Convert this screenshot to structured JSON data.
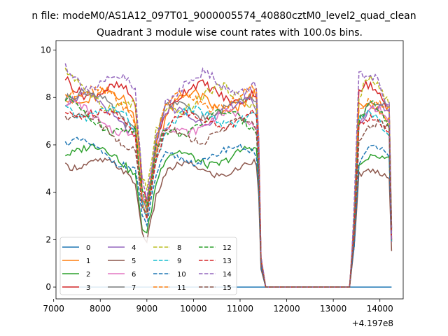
{
  "chart_data": {
    "type": "line",
    "suptitle": "n file: modeM0/AS1A12_097T01_9000005574_40880cztM0_level2_quad_clean",
    "title": "Quadrant 3 module wise count rates with 100.0s bins.",
    "xlabel": "",
    "ylabel": "",
    "x_offset_label": "+4.197e8",
    "xlim": [
      7050,
      14500
    ],
    "ylim": [
      -0.5,
      10.4
    ],
    "xticks": [
      7000,
      8000,
      9000,
      10000,
      11000,
      12000,
      13000,
      14000
    ],
    "yticks": [
      0,
      2,
      4,
      6,
      8,
      10
    ],
    "grid": false,
    "legend_position": "lower-left",
    "legend_columns": 4,
    "series": [
      {
        "name": "0",
        "color": "#1f77b4",
        "dash": "solid",
        "base": 0.0,
        "amp": 0.0,
        "phase": 0.0
      },
      {
        "name": "1",
        "color": "#ff7f0e",
        "dash": "solid",
        "base": 7.8,
        "amp": 0.5,
        "phase": 1.1
      },
      {
        "name": "2",
        "color": "#2ca02c",
        "dash": "solid",
        "base": 5.5,
        "amp": 0.35,
        "phase": 2.3
      },
      {
        "name": "3",
        "color": "#d62728",
        "dash": "solid",
        "base": 8.2,
        "amp": 0.45,
        "phase": 0.4
      },
      {
        "name": "4",
        "color": "#9467bd",
        "dash": "solid",
        "base": 7.4,
        "amp": 0.4,
        "phase": 3.0
      },
      {
        "name": "5",
        "color": "#8c564b",
        "dash": "solid",
        "base": 5.0,
        "amp": 0.3,
        "phase": 1.7
      },
      {
        "name": "6",
        "color": "#e377c2",
        "dash": "solid",
        "base": 7.0,
        "amp": 0.35,
        "phase": 4.2
      },
      {
        "name": "7",
        "color": "#7f7f7f",
        "dash": "solid",
        "base": 7.6,
        "amp": 0.4,
        "phase": 2.8
      },
      {
        "name": "8",
        "color": "#bcbd22",
        "dash": "dashed",
        "base": 8.0,
        "amp": 0.45,
        "phase": 5.0
      },
      {
        "name": "9",
        "color": "#17becf",
        "dash": "dashed",
        "base": 7.2,
        "amp": 0.4,
        "phase": 0.9
      },
      {
        "name": "10",
        "color": "#1f77b4",
        "dash": "dashed",
        "base": 5.6,
        "amp": 0.3,
        "phase": 3.6
      },
      {
        "name": "11",
        "color": "#ff7f0e",
        "dash": "dashed",
        "base": 7.9,
        "amp": 0.4,
        "phase": 2.0
      },
      {
        "name": "12",
        "color": "#2ca02c",
        "dash": "dashed",
        "base": 7.0,
        "amp": 0.4,
        "phase": 4.7
      },
      {
        "name": "13",
        "color": "#d62728",
        "dash": "dashed",
        "base": 7.1,
        "amp": 0.35,
        "phase": 1.4
      },
      {
        "name": "14",
        "color": "#9467bd",
        "dash": "dashed",
        "base": 8.6,
        "amp": 0.5,
        "phase": 0.2
      },
      {
        "name": "15",
        "color": "#8c564b",
        "dash": "dashed",
        "base": 6.6,
        "amp": 0.4,
        "phase": 3.3
      }
    ],
    "profile": [
      [
        7250,
        1.08
      ],
      [
        8500,
        0.97
      ],
      [
        8750,
        0.92
      ],
      [
        8900,
        0.52
      ],
      [
        9000,
        0.45
      ],
      [
        9200,
        0.8
      ],
      [
        9400,
        0.95
      ],
      [
        9700,
        0.98
      ],
      [
        10500,
        1.0
      ],
      [
        11300,
        1.01
      ],
      [
        11380,
        0.98
      ],
      [
        11450,
        0.15
      ],
      [
        11550,
        0.0
      ],
      [
        13350,
        0.0
      ],
      [
        13450,
        0.35
      ],
      [
        13550,
        0.98
      ],
      [
        13800,
        1.05
      ],
      [
        14000,
        1.02
      ],
      [
        14200,
        0.95
      ],
      [
        14250,
        0.3
      ]
    ],
    "x_step": 50
  }
}
